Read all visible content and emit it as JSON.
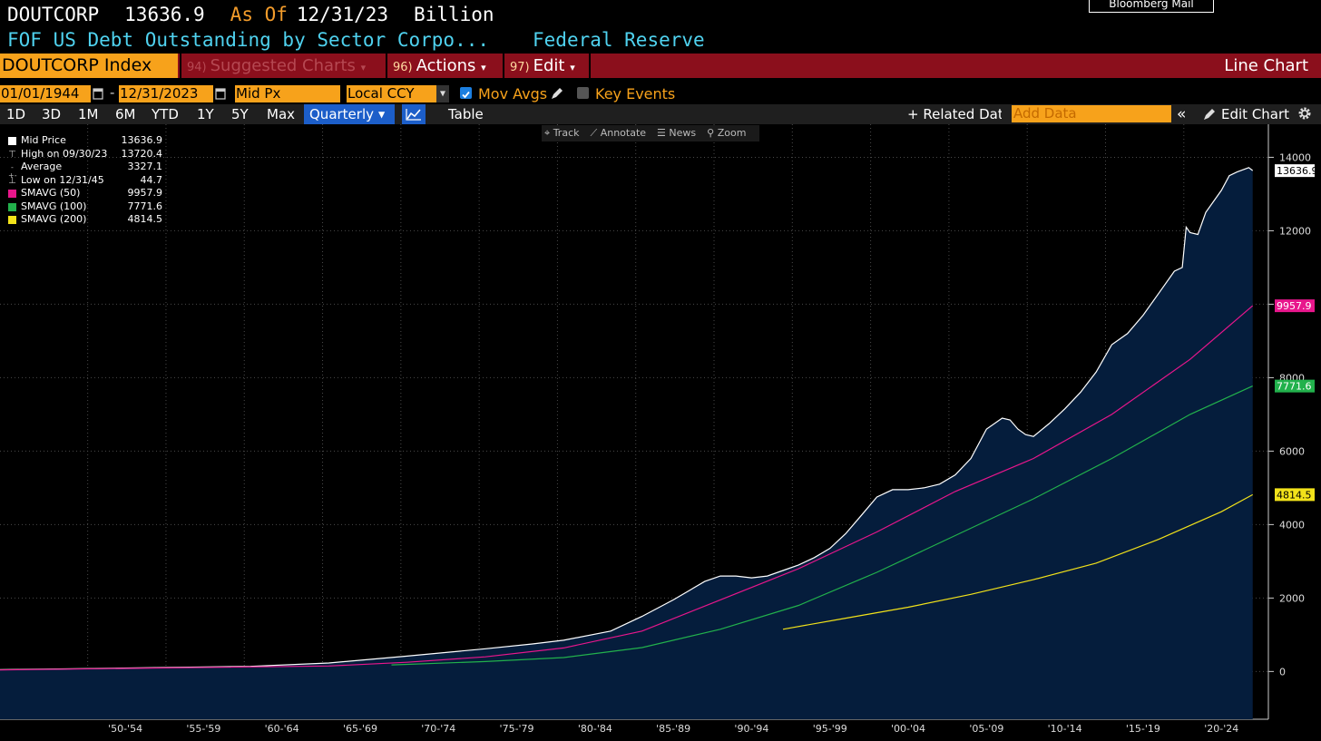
{
  "header": {
    "ticker": "DOUTCORP",
    "last_value": "13636.9",
    "as_of_label": "As Of",
    "as_of_date": "12/31/23",
    "unit": "Billion",
    "description": "FOF US Debt Outstanding by Sector Corpo...",
    "source": "Federal Reserve",
    "mail_button": "Bloomberg Mail"
  },
  "menubar": {
    "security": "DOUTCORP Index",
    "suggested": {
      "num": "94)",
      "label": "Suggested Charts"
    },
    "actions": {
      "num": "96)",
      "label": "Actions"
    },
    "edit": {
      "num": "97)",
      "label": "Edit"
    },
    "chart_type": "Line Chart",
    "colors": {
      "bar": "#8b0f1c",
      "accent": "#f7a21b"
    }
  },
  "range": {
    "start": "01/01/1944",
    "separator": "-",
    "end": "12/31/2023",
    "price_field": "Mid Px",
    "currency": "Local CCY",
    "mov_avgs_label": "Mov Avgs",
    "mov_avgs_checked": true,
    "key_events_label": "Key Events",
    "key_events_checked": false
  },
  "toolbar": {
    "periods": [
      "1D",
      "3D",
      "1M",
      "6M",
      "YTD",
      "1Y",
      "5Y",
      "Max"
    ],
    "frequency": "Quarterly",
    "table_label": "Table",
    "related_data": "+ Related Data",
    "add_data_placeholder": "Add Data",
    "edit_chart": "Edit Chart",
    "chart_tools": [
      "Track",
      "Annotate",
      "News",
      "Zoom"
    ]
  },
  "legend": [
    {
      "label": "Mid Price",
      "value": "13636.9",
      "color": "#ffffff",
      "marker": "square"
    },
    {
      "label": "High on 09/30/23",
      "value": "13720.4",
      "color": "#bbbbbb",
      "marker": "high-icon"
    },
    {
      "label": "Average",
      "value": "3327.1",
      "color": "#bbbbbb",
      "marker": "average-icon"
    },
    {
      "label": "Low on 12/31/45",
      "value": "44.7",
      "color": "#bbbbbb",
      "marker": "low-icon"
    },
    {
      "label": "SMAVG (50)",
      "value": "9957.9",
      "color": "#e8168c",
      "marker": "square"
    },
    {
      "label": "SMAVG (100)",
      "value": "7771.6",
      "color": "#22b14c",
      "marker": "square"
    },
    {
      "label": "SMAVG (200)",
      "value": "4814.5",
      "color": "#f2e21a",
      "marker": "square"
    }
  ],
  "chart_data": {
    "type": "line",
    "title": "FOF US Debt Outstanding by Sector Corpo...",
    "ylabel": "",
    "xlabel": "",
    "ylim": [
      -1300,
      14900
    ],
    "xlim": [
      1944.0,
      2025.0
    ],
    "y_ticks": [
      0,
      2000,
      4000,
      6000,
      8000,
      10000,
      12000,
      14000
    ],
    "x_ticks": [
      "'50-'54",
      "'55-'59",
      "'60-'64",
      "'65-'69",
      "'70-'74",
      "'75-'79",
      "'80-'84",
      "'85-'89",
      "'90-'94",
      "'95-'99",
      "'00-'04",
      "'05-'09",
      "'10-'14",
      "'15-'19",
      "'20-'24"
    ],
    "x_tick_years": [
      1950,
      1955,
      1960,
      1965,
      1970,
      1975,
      1980,
      1985,
      1990,
      1995,
      2000,
      2005,
      2010,
      2015,
      2020
    ],
    "grid": true,
    "legend_position": "top-left",
    "series": [
      {
        "name": "Mid Price",
        "color": "#ffffff",
        "fill": "#051d3c",
        "x": [
          1944,
          1950,
          1955,
          1960,
          1965,
          1970,
          1975,
          1978,
          1980,
          1983,
          1985,
          1987,
          1989,
          1990,
          1991,
          1992,
          1993,
          1994,
          1995,
          1996,
          1997,
          1998,
          1999,
          2000,
          2001,
          2002,
          2003,
          2004,
          2005,
          2006,
          2007,
          2008,
          2008.5,
          2009,
          2009.5,
          2010,
          2011,
          2012,
          2013,
          2014,
          2015,
          2016,
          2017,
          2018,
          2019,
          2019.5,
          2019.75,
          2020,
          2020.5,
          2021,
          2022,
          2022.5,
          2023,
          2023.75,
          2024
        ],
        "y": [
          50,
          80,
          110,
          140,
          230,
          420,
          620,
          750,
          850,
          1100,
          1500,
          1950,
          2450,
          2600,
          2600,
          2550,
          2600,
          2750,
          2900,
          3100,
          3350,
          3750,
          4250,
          4750,
          4950,
          4950,
          5000,
          5100,
          5350,
          5800,
          6600,
          6900,
          6850,
          6600,
          6450,
          6400,
          6750,
          7150,
          7600,
          8150,
          8900,
          9200,
          9700,
          10300,
          10900,
          11000,
          12100,
          11950,
          11900,
          12500,
          13100,
          13500,
          13600,
          13720,
          13637
        ]
      },
      {
        "name": "SMAVG (50)",
        "color": "#e8168c",
        "x": [
          1944,
          1955,
          1965,
          1970,
          1975,
          1980,
          1985,
          1990,
          1995,
          2000,
          2005,
          2010,
          2015,
          2020,
          2024
        ],
        "y": [
          40,
          100,
          150,
          250,
          400,
          640,
          1100,
          1950,
          2800,
          3800,
          4900,
          5800,
          7000,
          8500,
          9958
        ]
      },
      {
        "name": "SMAVG (100)",
        "color": "#22b14c",
        "x": [
          1969,
          1975,
          1980,
          1985,
          1990,
          1995,
          2000,
          2005,
          2010,
          2015,
          2020,
          2024
        ],
        "y": [
          180,
          270,
          380,
          650,
          1150,
          1800,
          2700,
          3700,
          4700,
          5800,
          7000,
          7772
        ]
      },
      {
        "name": "SMAVG (200)",
        "color": "#f2e21a",
        "x": [
          1994,
          1998,
          2002,
          2006,
          2010,
          2014,
          2018,
          2022,
          2024
        ],
        "y": [
          1150,
          1450,
          1750,
          2100,
          2500,
          2950,
          3600,
          4350,
          4815
        ]
      }
    ],
    "last_value_labels": [
      {
        "value": "13636.9",
        "color": "#ffffff"
      },
      {
        "value": "9957.9",
        "color": "#e8168c"
      },
      {
        "value": "7771.6",
        "color": "#22b14c"
      },
      {
        "value": "4814.5",
        "color": "#f2e21a"
      }
    ]
  }
}
